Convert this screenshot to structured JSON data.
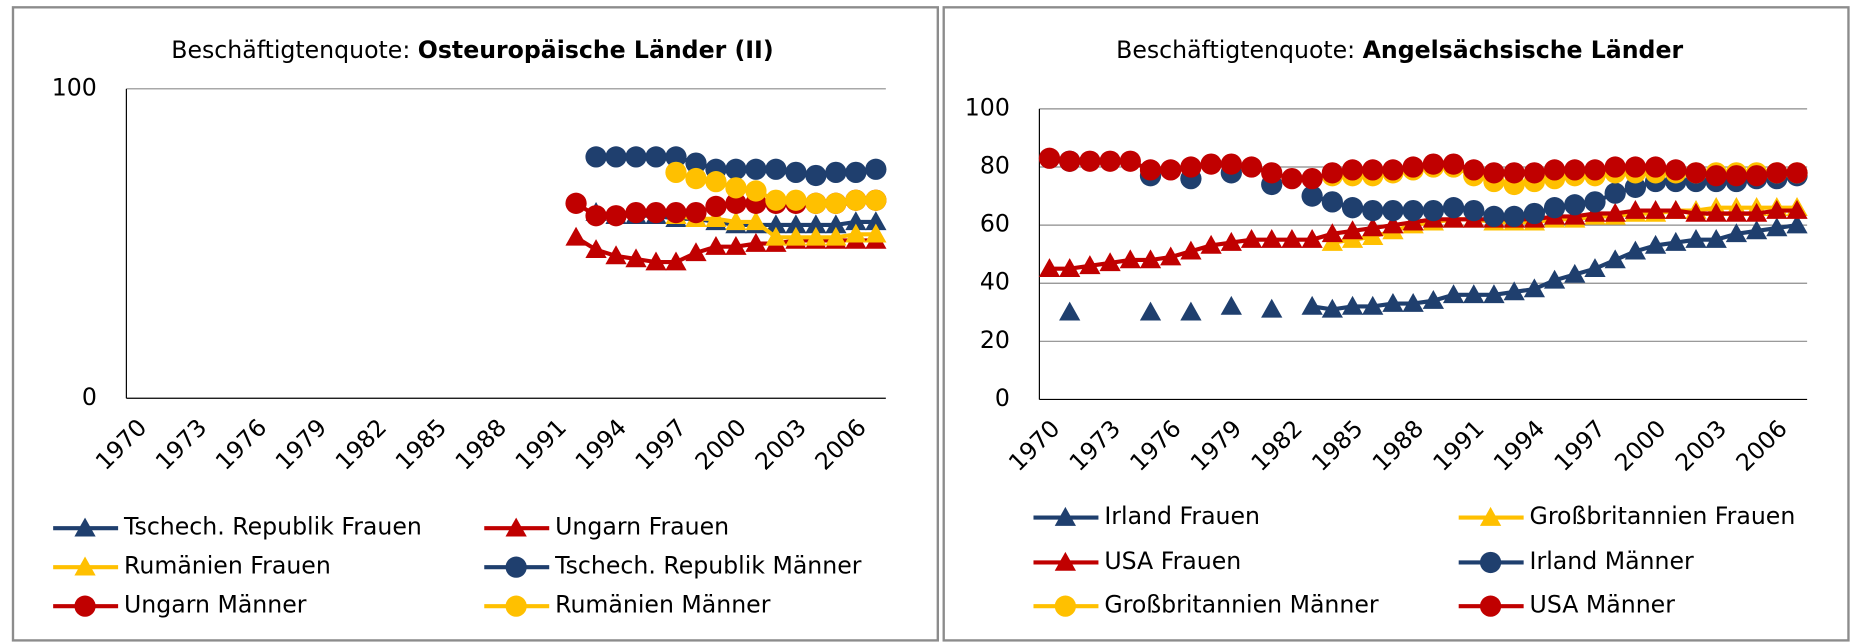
{
  "chart_data": [
    {
      "type": "line",
      "title_prefix": "Beschäftigtenquote:",
      "title": "Osteuropäische Länder (II)",
      "categories": [
        "1970",
        null,
        null,
        "1973",
        null,
        null,
        "1976",
        null,
        null,
        "1979",
        null,
        null,
        "1982",
        null,
        null,
        "1985",
        null,
        null,
        "1988",
        null,
        null,
        "1991",
        null,
        null,
        "1994",
        null,
        null,
        "1997",
        null,
        null,
        "2000",
        null,
        null,
        "2003",
        null,
        null,
        "2006",
        null
      ],
      "ylim": [
        0,
        100
      ],
      "yticks": [
        0,
        100
      ],
      "grid": true,
      "series": [
        {
          "name": "Tschech. Republik Frauen",
          "color": "#1f3f6e",
          "marker": "triangle",
          "values": [
            null,
            null,
            null,
            null,
            null,
            null,
            null,
            null,
            null,
            null,
            null,
            null,
            null,
            null,
            null,
            null,
            null,
            null,
            null,
            null,
            null,
            null,
            null,
            60,
            59,
            59,
            59,
            58,
            58,
            57,
            56,
            56,
            56,
            56,
            56,
            56,
            57,
            57
          ]
        },
        {
          "name": "Ungarn Frauen",
          "color": "#c00000",
          "marker": "triangle",
          "values": [
            null,
            null,
            null,
            null,
            null,
            null,
            null,
            null,
            null,
            null,
            null,
            null,
            null,
            null,
            null,
            null,
            null,
            null,
            null,
            null,
            null,
            null,
            52,
            48,
            46,
            45,
            44,
            44,
            47,
            49,
            49,
            50,
            50,
            51,
            51,
            51,
            51,
            51
          ]
        },
        {
          "name": "Rumänien Frauen",
          "color": "#ffc000",
          "marker": "triangle",
          "values": [
            null,
            null,
            null,
            null,
            null,
            null,
            null,
            null,
            null,
            null,
            null,
            null,
            null,
            null,
            null,
            null,
            null,
            null,
            null,
            null,
            null,
            null,
            null,
            null,
            null,
            null,
            null,
            59,
            58,
            58,
            57,
            57,
            52,
            52,
            52,
            52,
            53,
            53
          ]
        },
        {
          "name": "Tschech. Republik Männer",
          "color": "#1f3f6e",
          "marker": "circle",
          "values": [
            null,
            null,
            null,
            null,
            null,
            null,
            null,
            null,
            null,
            null,
            null,
            null,
            null,
            null,
            null,
            null,
            null,
            null,
            null,
            null,
            null,
            null,
            null,
            78,
            78,
            78,
            78,
            78,
            76,
            74,
            74,
            74,
            74,
            73,
            72,
            73,
            73,
            74
          ]
        },
        {
          "name": "Ungarn Männer",
          "color": "#c00000",
          "marker": "circle",
          "values": [
            null,
            null,
            null,
            null,
            null,
            null,
            null,
            null,
            null,
            null,
            null,
            null,
            null,
            null,
            null,
            null,
            null,
            null,
            null,
            null,
            null,
            null,
            63,
            59,
            59,
            60,
            60,
            60,
            60,
            62,
            63,
            63,
            63,
            63,
            63,
            63,
            64,
            64
          ]
        },
        {
          "name": "Rumänien Männer",
          "color": "#ffc000",
          "marker": "circle",
          "values": [
            null,
            null,
            null,
            null,
            null,
            null,
            null,
            null,
            null,
            null,
            null,
            null,
            null,
            null,
            null,
            null,
            null,
            null,
            null,
            null,
            null,
            null,
            null,
            null,
            null,
            null,
            null,
            73,
            71,
            70,
            68,
            67,
            64,
            64,
            63,
            63,
            64,
            64
          ]
        }
      ]
    },
    {
      "type": "line",
      "title_prefix": "Beschäftigtenquote:",
      "title": "Angelsächsische Länder",
      "categories": [
        "1970",
        null,
        null,
        "1973",
        null,
        null,
        "1976",
        null,
        null,
        "1979",
        null,
        null,
        "1982",
        null,
        null,
        "1985",
        null,
        null,
        "1988",
        null,
        null,
        "1991",
        null,
        null,
        "1994",
        null,
        null,
        "1997",
        null,
        null,
        "2000",
        null,
        null,
        "2003",
        null,
        null,
        "2006",
        null
      ],
      "ylim": [
        0,
        100
      ],
      "yticks": [
        0,
        20,
        40,
        60,
        80,
        100
      ],
      "grid": true,
      "series": [
        {
          "name": "Irland Frauen",
          "color": "#1f3f6e",
          "marker": "triangle",
          "values": [
            null,
            30,
            null,
            null,
            null,
            30,
            null,
            30,
            null,
            32,
            null,
            31,
            null,
            32,
            31,
            32,
            32,
            33,
            33,
            34,
            36,
            36,
            36,
            37,
            38,
            41,
            43,
            45,
            48,
            51,
            53,
            54,
            55,
            55,
            57,
            58,
            59,
            60
          ]
        },
        {
          "name": "Großbritannien Frauen",
          "color": "#ffc000",
          "marker": "triangle",
          "values": [
            null,
            null,
            null,
            null,
            null,
            null,
            null,
            null,
            null,
            null,
            null,
            null,
            null,
            null,
            54,
            55,
            56,
            58,
            60,
            61,
            62,
            62,
            61,
            61,
            61,
            62,
            62,
            63,
            63,
            64,
            64,
            65,
            65,
            66,
            66,
            66,
            66,
            66
          ]
        },
        {
          "name": "USA Frauen",
          "color": "#c00000",
          "marker": "triangle",
          "values": [
            45,
            45,
            46,
            47,
            48,
            48,
            49,
            51,
            53,
            54,
            55,
            55,
            55,
            55,
            57,
            58,
            59,
            60,
            61,
            62,
            62,
            62,
            62,
            62,
            62,
            63,
            63,
            64,
            64,
            65,
            65,
            65,
            64,
            64,
            64,
            64,
            65,
            65
          ]
        },
        {
          "name": "Irland Männer",
          "color": "#1f3f6e",
          "marker": "circle",
          "values": [
            null,
            82,
            null,
            null,
            null,
            77,
            null,
            76,
            null,
            78,
            null,
            74,
            null,
            70,
            68,
            66,
            65,
            65,
            65,
            65,
            66,
            65,
            63,
            63,
            64,
            66,
            67,
            68,
            71,
            73,
            75,
            75,
            75,
            75,
            75,
            76,
            76,
            77
          ]
        },
        {
          "name": "Großbritannien Männer",
          "color": "#ffc000",
          "marker": "circle",
          "values": [
            null,
            null,
            null,
            null,
            null,
            null,
            null,
            null,
            null,
            null,
            null,
            null,
            null,
            null,
            77,
            77,
            77,
            78,
            79,
            80,
            80,
            77,
            75,
            74,
            75,
            76,
            77,
            77,
            78,
            78,
            78,
            78,
            78,
            78,
            78,
            78,
            78,
            78
          ]
        },
        {
          "name": "USA Männer",
          "color": "#c00000",
          "marker": "circle",
          "values": [
            83,
            82,
            82,
            82,
            82,
            79,
            79,
            80,
            81,
            81,
            80,
            78,
            76,
            76,
            78,
            79,
            79,
            79,
            80,
            81,
            81,
            79,
            78,
            78,
            78,
            79,
            79,
            79,
            80,
            80,
            80,
            79,
            78,
            77,
            77,
            77,
            78,
            78
          ]
        }
      ]
    }
  ]
}
